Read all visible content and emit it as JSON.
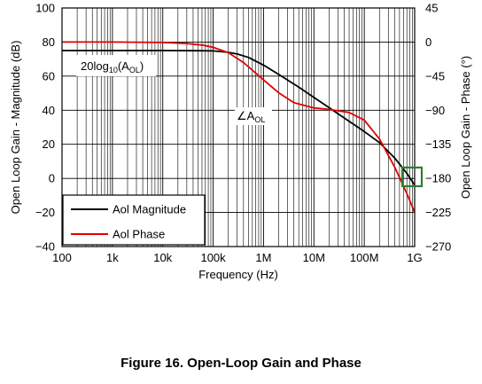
{
  "caption": "Figure 16. Open-Loop Gain and Phase",
  "chart_data": {
    "type": "line",
    "xlabel": "Frequency (Hz)",
    "ylabel_left": "Open Loop Gain - Magnitude (dB)",
    "ylabel_right": "Open Loop Gain - Phase (°)",
    "x_scale": "log",
    "xlim": [
      100,
      1000000000
    ],
    "ylim_left": [
      -40,
      100
    ],
    "ylim_right": [
      -270,
      45
    ],
    "grid": true,
    "legend_position": "bottom-left",
    "x_ticks": [
      {
        "value": 100,
        "label": "100"
      },
      {
        "value": 1000,
        "label": "1k"
      },
      {
        "value": 10000,
        "label": "10k"
      },
      {
        "value": 100000,
        "label": "100k"
      },
      {
        "value": 1000000,
        "label": "1M"
      },
      {
        "value": 10000000,
        "label": "10M"
      },
      {
        "value": 100000000,
        "label": "100M"
      },
      {
        "value": 1000000000,
        "label": "1G"
      }
    ],
    "y_left_ticks": [
      {
        "value": 100,
        "label": "100"
      },
      {
        "value": 80,
        "label": "80"
      },
      {
        "value": 60,
        "label": "60"
      },
      {
        "value": 40,
        "label": "40"
      },
      {
        "value": 20,
        "label": "20"
      },
      {
        "value": 0,
        "label": "0"
      },
      {
        "value": -20,
        "label": "−20"
      },
      {
        "value": -40,
        "label": "−40"
      }
    ],
    "y_right_ticks": [
      {
        "value": 45,
        "label": "45"
      },
      {
        "value": 0,
        "label": "0"
      },
      {
        "value": -45,
        "label": "−45"
      },
      {
        "value": -90,
        "label": "−90"
      },
      {
        "value": -135,
        "label": "−135"
      },
      {
        "value": -180,
        "label": "−180"
      },
      {
        "value": -225,
        "label": "−225"
      },
      {
        "value": -270,
        "label": "−270"
      }
    ],
    "series": [
      {
        "name": "Aol Magnitude",
        "color": "#000000",
        "axis": "left",
        "x": [
          100,
          1000,
          10000,
          50000,
          100000,
          200000,
          300000,
          500000,
          1000000,
          2000000,
          5000000,
          10000000,
          20000000,
          50000000,
          100000000,
          200000000,
          400000000,
          700000000,
          1000000000
        ],
        "y": [
          75,
          75,
          75,
          74.9,
          74.8,
          74,
          73,
          71,
          66.5,
          61,
          53.5,
          47.5,
          41.5,
          33.5,
          27.5,
          21,
          12,
          3,
          -4
        ]
      },
      {
        "name": "Aol Phase",
        "color": "#e00000",
        "axis": "right",
        "x": [
          100,
          1000,
          10000,
          30000,
          60000,
          100000,
          200000,
          400000,
          700000,
          1000000,
          2000000,
          4000000,
          10000000,
          20000000,
          50000000,
          100000000,
          200000000,
          400000000,
          700000000,
          1000000000
        ],
        "y": [
          0,
          0,
          -0.5,
          -2,
          -4,
          -7,
          -14,
          -27,
          -41,
          -50,
          -67,
          -80,
          -87,
          -89,
          -93,
          -103,
          -128,
          -165,
          -200,
          -225
        ]
      }
    ],
    "annotations": [
      {
        "kind": "magnitude-label",
        "base": "20log",
        "sub": "10",
        "open": "(A",
        "sub2": "OL",
        "close": ")"
      },
      {
        "kind": "phase-label",
        "base": "∠A",
        "sub": "OL"
      },
      {
        "kind": "highlight-box",
        "color": "#2e7d32",
        "x_range": [
          400000000,
          1000000000
        ],
        "y_range_right": [
          -188,
          -168
        ]
      }
    ]
  }
}
